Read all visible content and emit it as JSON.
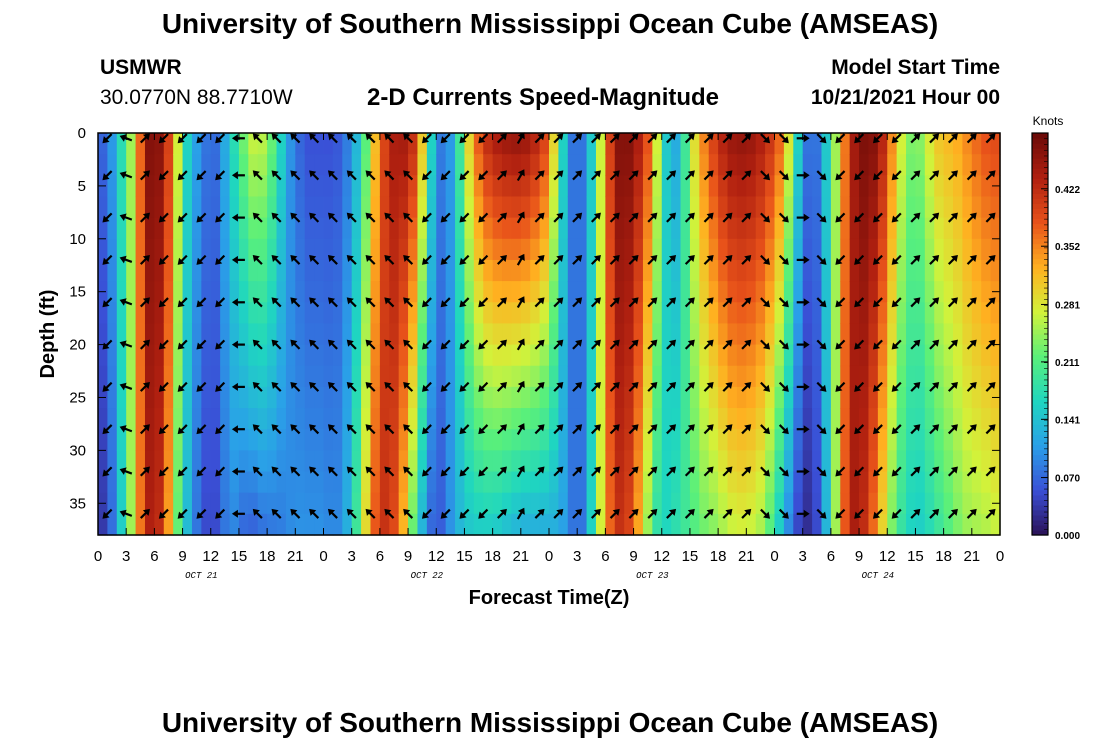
{
  "header": {
    "title": "University of Southern Mississippi Ocean Cube (AMSEAS)",
    "station_id": "USMWR",
    "station_coords": "30.0770N  88.7710W",
    "product_title": "2-D Currents Speed-Magnitude",
    "model_start_label": "Model Start Time",
    "model_start_value": "10/21/2021 Hour 00"
  },
  "footer": {
    "title": "University of Southern Mississippi Ocean Cube (AMSEAS)"
  },
  "colors": {
    "colormap": [
      "#2a1055",
      "#3a4fd6",
      "#2aa0e8",
      "#1fd6c0",
      "#5af07a",
      "#d2f23a",
      "#ffb020",
      "#e8521a",
      "#b02010",
      "#6a0a08"
    ]
  },
  "chart_data": {
    "type": "heatmap",
    "title": "2-D Currents Speed-Magnitude",
    "xlabel": "Forecast Time(Z)",
    "ylabel": "Depth (ft)",
    "x_range_hours": [
      0,
      96
    ],
    "x_tick_labels": [
      "0",
      "3",
      "6",
      "9",
      "12",
      "15",
      "18",
      "21",
      "0",
      "3",
      "6",
      "9",
      "12",
      "15",
      "18",
      "21",
      "0",
      "3",
      "6",
      "9",
      "12",
      "15",
      "18",
      "21",
      "0",
      "3",
      "6",
      "9",
      "12",
      "15",
      "18",
      "21",
      "0"
    ],
    "date_labels": [
      {
        "label": "OCT 21",
        "hour": 11
      },
      {
        "label": "OCT 22",
        "hour": 35
      },
      {
        "label": "OCT 23",
        "hour": 59
      },
      {
        "label": "OCT 24",
        "hour": 83
      }
    ],
    "y_range_ft": [
      0,
      38
    ],
    "y_ticks": [
      0,
      5,
      10,
      15,
      20,
      25,
      30,
      35
    ],
    "colorbar": {
      "units": "Knots",
      "range": [
        0,
        0.49
      ],
      "tick_values": [
        0.0,
        0.07,
        0.141,
        0.211,
        0.281,
        0.352,
        0.422
      ],
      "tick_labels": [
        "0.000",
        "0.070",
        "0.141",
        "0.211",
        "0.281",
        "0.352",
        "0.422"
      ]
    },
    "speed_knots_by_hour_top": [
      0.06,
      0.08,
      0.13,
      0.22,
      0.28,
      0.46,
      0.48,
      0.45,
      0.35,
      0.2,
      0.12,
      0.1,
      0.06,
      0.09,
      0.15,
      0.2,
      0.26,
      0.28,
      0.25,
      0.2,
      0.12,
      0.08,
      0.06,
      0.05,
      0.06,
      0.05,
      0.07,
      0.1,
      0.16,
      0.27,
      0.36,
      0.43,
      0.45,
      0.44,
      0.4,
      0.22,
      0.1,
      0.07,
      0.14,
      0.25,
      0.35,
      0.41,
      0.44,
      0.45,
      0.46,
      0.46,
      0.45,
      0.42,
      0.38,
      0.22,
      0.1,
      0.06,
      0.1,
      0.2,
      0.34,
      0.46,
      0.48,
      0.46,
      0.42,
      0.35,
      0.2,
      0.1,
      0.14,
      0.25,
      0.33,
      0.38,
      0.42,
      0.45,
      0.46,
      0.46,
      0.45,
      0.43,
      0.4,
      0.35,
      0.22,
      0.1,
      0.06,
      0.1,
      0.2,
      0.3,
      0.42,
      0.47,
      0.48,
      0.46,
      0.4,
      0.3,
      0.25,
      0.22,
      0.26,
      0.3,
      0.32,
      0.32,
      0.34,
      0.36,
      0.38,
      0.39,
      0.39
    ],
    "speed_knots_by_hour_bottom": [
      0.02,
      0.05,
      0.1,
      0.21,
      0.29,
      0.43,
      0.44,
      0.4,
      0.27,
      0.17,
      0.1,
      0.06,
      0.04,
      0.06,
      0.1,
      0.08,
      0.06,
      0.07,
      0.08,
      0.08,
      0.09,
      0.1,
      0.1,
      0.1,
      0.1,
      0.09,
      0.1,
      0.15,
      0.24,
      0.35,
      0.41,
      0.42,
      0.36,
      0.28,
      0.16,
      0.09,
      0.05,
      0.08,
      0.12,
      0.14,
      0.15,
      0.15,
      0.15,
      0.14,
      0.13,
      0.12,
      0.12,
      0.12,
      0.12,
      0.12,
      0.1,
      0.06,
      0.1,
      0.22,
      0.33,
      0.41,
      0.42,
      0.37,
      0.29,
      0.2,
      0.16,
      0.17,
      0.19,
      0.2,
      0.22,
      0.23,
      0.24,
      0.26,
      0.27,
      0.27,
      0.26,
      0.24,
      0.18,
      0.12,
      0.06,
      0.03,
      0.02,
      0.08,
      0.18,
      0.32,
      0.44,
      0.44,
      0.4,
      0.33,
      0.26,
      0.2,
      0.17,
      0.15,
      0.16,
      0.18,
      0.2,
      0.22,
      0.24,
      0.25,
      0.25,
      0.26,
      0.27
    ],
    "arrow_columns_hours": [
      1,
      3,
      5,
      7,
      9,
      11,
      13,
      15,
      17,
      19,
      21,
      23,
      25,
      27,
      29,
      31,
      33,
      35,
      37,
      39,
      41,
      43,
      45,
      47,
      49,
      51,
      53,
      55,
      57,
      59,
      61,
      63,
      65,
      67,
      69,
      71,
      73,
      75,
      77,
      79,
      81,
      83,
      85,
      87,
      89,
      91,
      93,
      95
    ],
    "arrow_directions_deg": [
      135,
      200,
      -45,
      135,
      135,
      135,
      135,
      180,
      225,
      225,
      225,
      225,
      225,
      225,
      225,
      225,
      225,
      135,
      135,
      135,
      135,
      315,
      300,
      315,
      315,
      315,
      315,
      315,
      315,
      315,
      315,
      315,
      315,
      315,
      315,
      45,
      45,
      0,
      45,
      135,
      135,
      135,
      135,
      315,
      315,
      315,
      315,
      315
    ]
  }
}
